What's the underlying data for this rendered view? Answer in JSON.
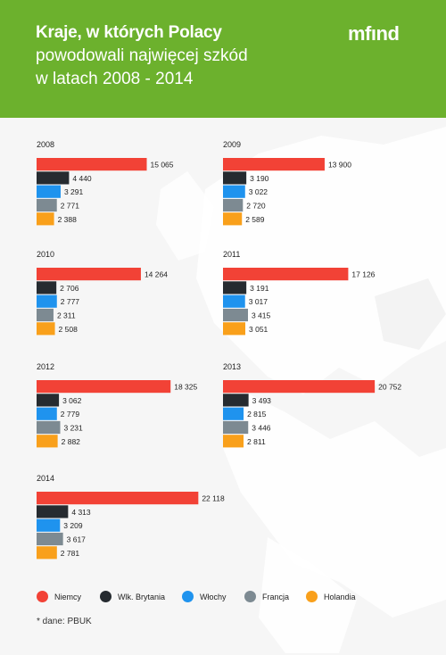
{
  "header": {
    "title_bold": "Kraje, w których Polacy",
    "title_line2": "powodowali najwięcej szkód",
    "title_line3": "w latach 2008 - 2014",
    "logo": "mfınd"
  },
  "colors": {
    "header_bg": "#6cb12d",
    "Niemcy": "#f24236",
    "Wlk. Brytania": "#262b30",
    "Włochy": "#1f93ee",
    "Francja": "#7d8a92",
    "Holandia": "#f9a01b"
  },
  "chart_data": {
    "type": "bar",
    "orientation": "horizontal",
    "series_names": [
      "Niemcy",
      "Wlk. Brytania",
      "Włochy",
      "Francja",
      "Holandia"
    ],
    "panels": [
      {
        "year": "2008",
        "values": [
          15065,
          4440,
          3291,
          2771,
          2388
        ],
        "labels": [
          "15 065",
          "4 440",
          "3 291",
          "2 771",
          "2 388"
        ]
      },
      {
        "year": "2009",
        "values": [
          13900,
          3190,
          3022,
          2720,
          2589
        ],
        "labels": [
          "13 900",
          "3 190",
          "3 022",
          "2 720",
          "2 589"
        ]
      },
      {
        "year": "2010",
        "values": [
          14264,
          2706,
          2777,
          2311,
          2508
        ],
        "labels": [
          "14 264",
          "2 706",
          "2 777",
          "2 311",
          "2 508"
        ]
      },
      {
        "year": "2011",
        "values": [
          17126,
          3191,
          3017,
          3415,
          3051
        ],
        "labels": [
          "17 126",
          "3 191",
          "3 017",
          "3 415",
          "3 051"
        ]
      },
      {
        "year": "2012",
        "values": [
          18325,
          3062,
          2779,
          3231,
          2882
        ],
        "labels": [
          "18 325",
          "3 062",
          "2 779",
          "3 231",
          "2 882"
        ]
      },
      {
        "year": "2013",
        "values": [
          20752,
          3493,
          2815,
          3446,
          2811
        ],
        "labels": [
          "20 752",
          "3 493",
          "2 815",
          "3 446",
          "2 811"
        ]
      },
      {
        "year": "2014",
        "values": [
          22118,
          4313,
          3209,
          3617,
          2781
        ],
        "labels": [
          "22 118",
          "4 313",
          "3 209",
          "3 617",
          "2 781"
        ]
      }
    ],
    "legend_position": "bottom"
  },
  "legend": [
    {
      "label": "Niemcy"
    },
    {
      "label": "Wlk. Brytania"
    },
    {
      "label": "Włochy"
    },
    {
      "label": "Francja"
    },
    {
      "label": "Holandia"
    }
  ],
  "source_note": "* dane: PBUK"
}
